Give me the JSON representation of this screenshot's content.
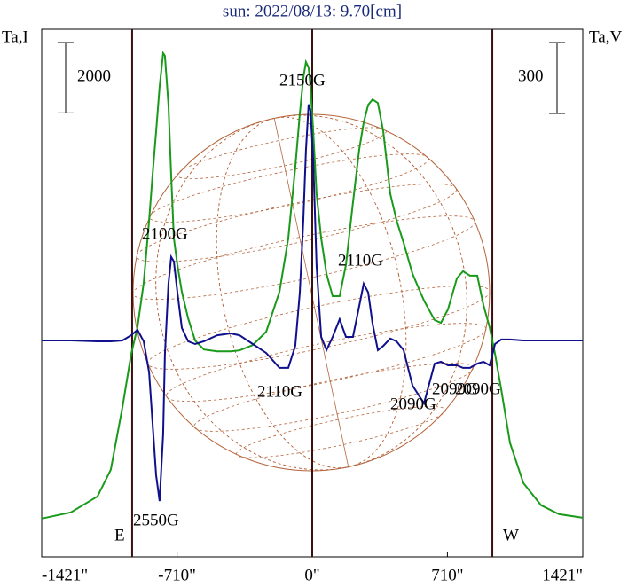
{
  "chart_data": {
    "type": "line",
    "title": "sun: 2022/08/13: 9.70[cm]",
    "y_label": "Ta,I",
    "y2_label": "Ta,V",
    "i_scale": 2000,
    "v_scale": 300,
    "x": [
      -1421,
      -1268,
      -1128,
      -1058,
      -997,
      -951,
      -918,
      -885,
      -857,
      -839,
      -820,
      -802,
      -783,
      -774,
      -755,
      -741,
      -727,
      -708,
      -685,
      -652,
      -615,
      -569,
      -499,
      -429,
      -382,
      -312,
      -242,
      -172,
      -126,
      -89,
      -65,
      -47,
      -33,
      -19,
      -9,
      5,
      23,
      47,
      75,
      107,
      144,
      177,
      214,
      247,
      270,
      294,
      317,
      345,
      373,
      410,
      443,
      480,
      527,
      587,
      643,
      676,
      713,
      760,
      792,
      829,
      867,
      899,
      932,
      960,
      993,
      1039,
      1109,
      1202,
      1295,
      1421
    ],
    "series": [
      {
        "name": "Ta,I",
        "color": "#1a9a1a",
        "values": [
          1088,
          1265,
          1720,
          2479,
          4250,
          5768,
          6527,
          7792,
          9563,
          10828,
          12093,
          13358,
          14320,
          14244,
          12852,
          10828,
          9057,
          8298,
          7539,
          6780,
          6148,
          5895,
          5844,
          5844,
          5870,
          6021,
          6401,
          7539,
          9057,
          11081,
          12599,
          13611,
          14067,
          13915,
          13358,
          12093,
          10322,
          9057,
          8045,
          7413,
          7413,
          8298,
          10069,
          11587,
          12346,
          12852,
          13004,
          12903,
          12093,
          10322,
          9563,
          8931,
          8045,
          7286,
          6730,
          6654,
          7033,
          7919,
          8121,
          7995,
          7995,
          7160,
          6527,
          5768,
          4756,
          3238,
          2100,
          1467,
          1214,
          1113
        ]
      },
      {
        "name": "Ta,V",
        "color": "#10108c",
        "axis": "y2",
        "values": [
          0,
          0,
          -4,
          -4,
          0,
          22,
          45,
          -4,
          -135,
          -345,
          -570,
          -679,
          -398,
          -60,
          240,
          353,
          334,
          203,
          53,
          -4,
          -15,
          -4,
          22,
          30,
          22,
          -15,
          -53,
          -116,
          -116,
          -23,
          203,
          503,
          803,
          998,
          971,
          765,
          315,
          15,
          -41,
          15,
          90,
          15,
          15,
          146,
          240,
          203,
          71,
          -41,
          -23,
          8,
          -4,
          -41,
          -191,
          -266,
          -98,
          -90,
          -105,
          -105,
          -116,
          -116,
          -98,
          -90,
          -105,
          -15,
          4,
          4,
          0,
          0,
          0,
          0
        ]
      }
    ],
    "xlim": [
      -1421,
      1421
    ],
    "xticks": [
      {
        "value": -1421,
        "label": "-1421\""
      },
      {
        "value": -710,
        "label": "-710\""
      },
      {
        "value": 0,
        "label": "0\""
      },
      {
        "value": 710,
        "label": "710\""
      },
      {
        "value": 1421,
        "label": "1421\""
      }
    ],
    "ylim": [
      0,
      15000
    ],
    "y2lim": [
      -915,
      1316
    ],
    "limbs": [
      -946,
      946
    ],
    "limb_labels": [
      "E",
      "W"
    ],
    "annotations": [
      "2100G",
      "2150G",
      "2110G",
      "2110G",
      "2090G",
      "2090G",
      "2090G",
      "2550G"
    ]
  }
}
